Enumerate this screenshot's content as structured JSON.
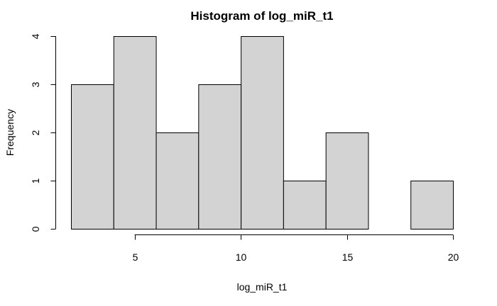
{
  "chart_data": {
    "type": "bar",
    "title": "Histogram of log_miR_t1",
    "xlabel": "log_miR_t1",
    "ylabel": "Frequency",
    "bin_edges": [
      2,
      4,
      6,
      8,
      10,
      12,
      14,
      16,
      18,
      20
    ],
    "values": [
      3,
      4,
      2,
      3,
      4,
      1,
      2,
      0,
      1
    ],
    "xlim": [
      2,
      20
    ],
    "ylim": [
      0,
      4
    ],
    "xticks": [
      5,
      10,
      15,
      20
    ],
    "yticks": [
      0,
      1,
      2,
      3,
      4
    ],
    "grid": false,
    "bar_color": "#d3d3d3",
    "edge_color": "#000000"
  }
}
